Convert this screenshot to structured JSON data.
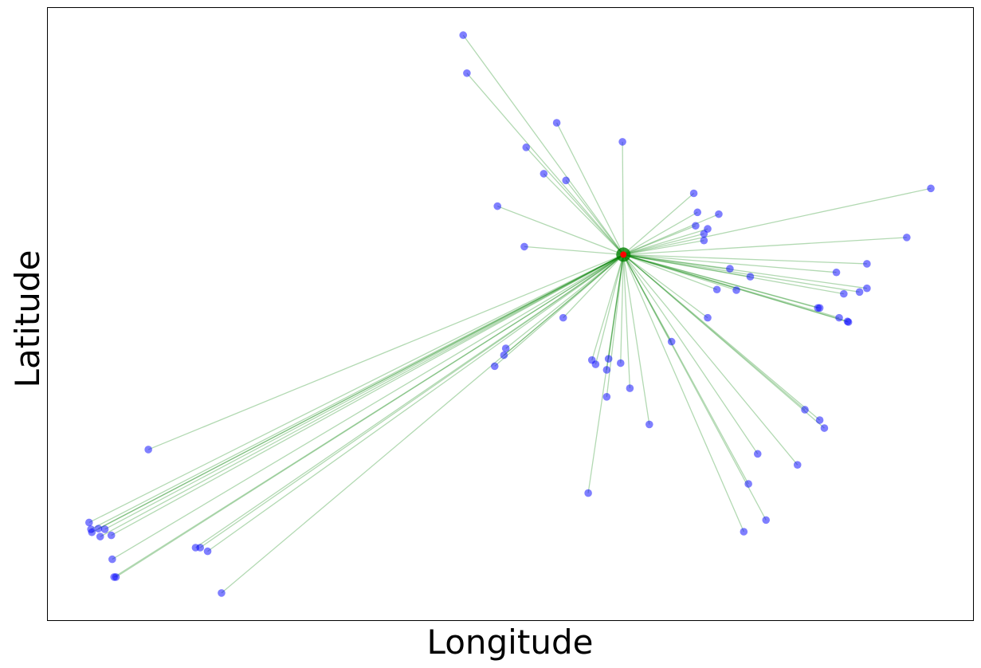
{
  "chart_data": {
    "type": "scatter",
    "title": "",
    "xlabel": "Longitude",
    "ylabel": "Latitude",
    "xticks": [],
    "yticks": [],
    "grid": false,
    "legend": "none",
    "xlim": [
      0,
      1000
    ],
    "ylim": [
      0,
      1000
    ],
    "hub": {
      "x": 622,
      "y": 597
    },
    "points": [
      {
        "x": 449,
        "y": 955
      },
      {
        "x": 453,
        "y": 893
      },
      {
        "x": 550,
        "y": 812
      },
      {
        "x": 517,
        "y": 772
      },
      {
        "x": 621,
        "y": 781
      },
      {
        "x": 536,
        "y": 729
      },
      {
        "x": 560,
        "y": 718
      },
      {
        "x": 486,
        "y": 676
      },
      {
        "x": 515,
        "y": 610
      },
      {
        "x": 698,
        "y": 697
      },
      {
        "x": 702,
        "y": 666
      },
      {
        "x": 725,
        "y": 663
      },
      {
        "x": 700,
        "y": 644
      },
      {
        "x": 713,
        "y": 639
      },
      {
        "x": 709,
        "y": 631
      },
      {
        "x": 709,
        "y": 620
      },
      {
        "x": 954,
        "y": 705
      },
      {
        "x": 928,
        "y": 625
      },
      {
        "x": 885,
        "y": 582
      },
      {
        "x": 737,
        "y": 574
      },
      {
        "x": 759,
        "y": 561
      },
      {
        "x": 852,
        "y": 568
      },
      {
        "x": 885,
        "y": 542
      },
      {
        "x": 877,
        "y": 536
      },
      {
        "x": 860,
        "y": 533
      },
      {
        "x": 723,
        "y": 540
      },
      {
        "x": 744,
        "y": 539
      },
      {
        "x": 832,
        "y": 510
      },
      {
        "x": 834,
        "y": 510
      },
      {
        "x": 855,
        "y": 494
      },
      {
        "x": 864,
        "y": 488
      },
      {
        "x": 865,
        "y": 487
      },
      {
        "x": 713,
        "y": 494
      },
      {
        "x": 557,
        "y": 494
      },
      {
        "x": 674,
        "y": 455
      },
      {
        "x": 495,
        "y": 444
      },
      {
        "x": 493,
        "y": 433
      },
      {
        "x": 483,
        "y": 415
      },
      {
        "x": 588,
        "y": 425
      },
      {
        "x": 592,
        "y": 418
      },
      {
        "x": 606,
        "y": 427
      },
      {
        "x": 619,
        "y": 420
      },
      {
        "x": 604,
        "y": 409
      },
      {
        "x": 629,
        "y": 379
      },
      {
        "x": 604,
        "y": 365
      },
      {
        "x": 650,
        "y": 320
      },
      {
        "x": 818,
        "y": 344
      },
      {
        "x": 834,
        "y": 327
      },
      {
        "x": 839,
        "y": 314
      },
      {
        "x": 767,
        "y": 272
      },
      {
        "x": 810,
        "y": 254
      },
      {
        "x": 757,
        "y": 223
      },
      {
        "x": 584,
        "y": 208
      },
      {
        "x": 776,
        "y": 164
      },
      {
        "x": 752,
        "y": 145
      },
      {
        "x": 109,
        "y": 279
      },
      {
        "x": 45,
        "y": 160
      },
      {
        "x": 47,
        "y": 149
      },
      {
        "x": 48,
        "y": 144
      },
      {
        "x": 55,
        "y": 150
      },
      {
        "x": 57,
        "y": 137
      },
      {
        "x": 62,
        "y": 149
      },
      {
        "x": 69,
        "y": 139
      },
      {
        "x": 70,
        "y": 100
      },
      {
        "x": 72,
        "y": 71
      },
      {
        "x": 74,
        "y": 71
      },
      {
        "x": 160,
        "y": 119
      },
      {
        "x": 165,
        "y": 119
      },
      {
        "x": 173,
        "y": 113
      },
      {
        "x": 188,
        "y": 45
      }
    ],
    "colors": {
      "point": "#0000ff",
      "edge": "#008000",
      "hub": "#008000",
      "hub_center": "#ff0000"
    }
  }
}
